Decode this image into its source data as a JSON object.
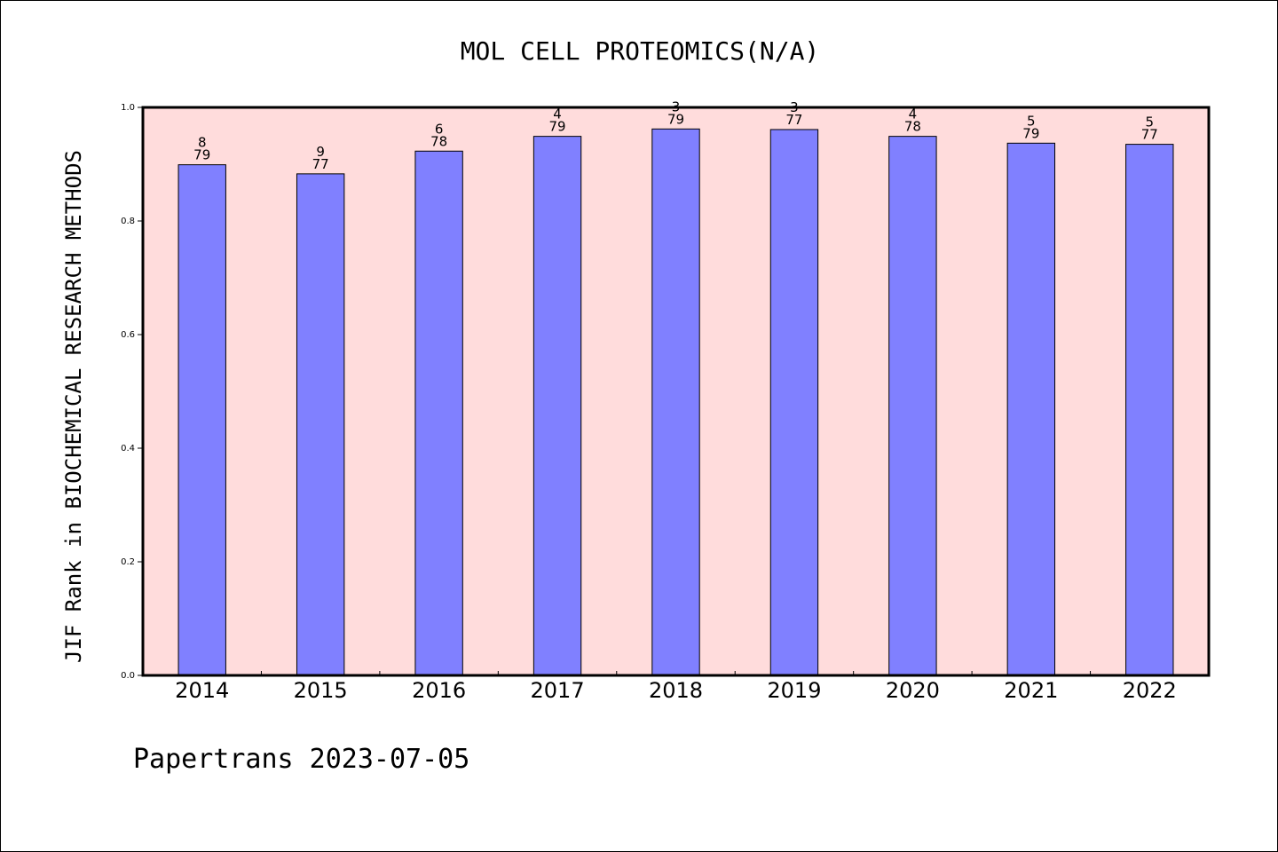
{
  "footer": {
    "text": "Papertrans 2023-07-05"
  },
  "chart_data": {
    "type": "bar",
    "title": "MOL CELL PROTEOMICS(N/A)",
    "xlabel": "",
    "ylabel": "JIF Rank in BIOCHEMICAL RESEARCH METHODS",
    "ylim": [
      0,
      1.0
    ],
    "yticks": [
      "0.0",
      "0.2",
      "0.4",
      "0.6",
      "0.8",
      "1.0"
    ],
    "grid": false,
    "categories": [
      "2014",
      "2015",
      "2016",
      "2017",
      "2018",
      "2019",
      "2020",
      "2021",
      "2022"
    ],
    "values": [
      0.899,
      0.883,
      0.923,
      0.949,
      0.962,
      0.961,
      0.949,
      0.937,
      0.935
    ],
    "labels": [
      {
        "rank": "8",
        "total": "79"
      },
      {
        "rank": "9",
        "total": "77"
      },
      {
        "rank": "6",
        "total": "78"
      },
      {
        "rank": "4",
        "total": "79"
      },
      {
        "rank": "3",
        "total": "79"
      },
      {
        "rank": "3",
        "total": "77"
      },
      {
        "rank": "4",
        "total": "78"
      },
      {
        "rank": "5",
        "total": "79"
      },
      {
        "rank": "5",
        "total": "77"
      }
    ],
    "colors": {
      "bar": "#8080ff",
      "plot_background": "#ffdcdc",
      "axis": "#000000"
    }
  }
}
